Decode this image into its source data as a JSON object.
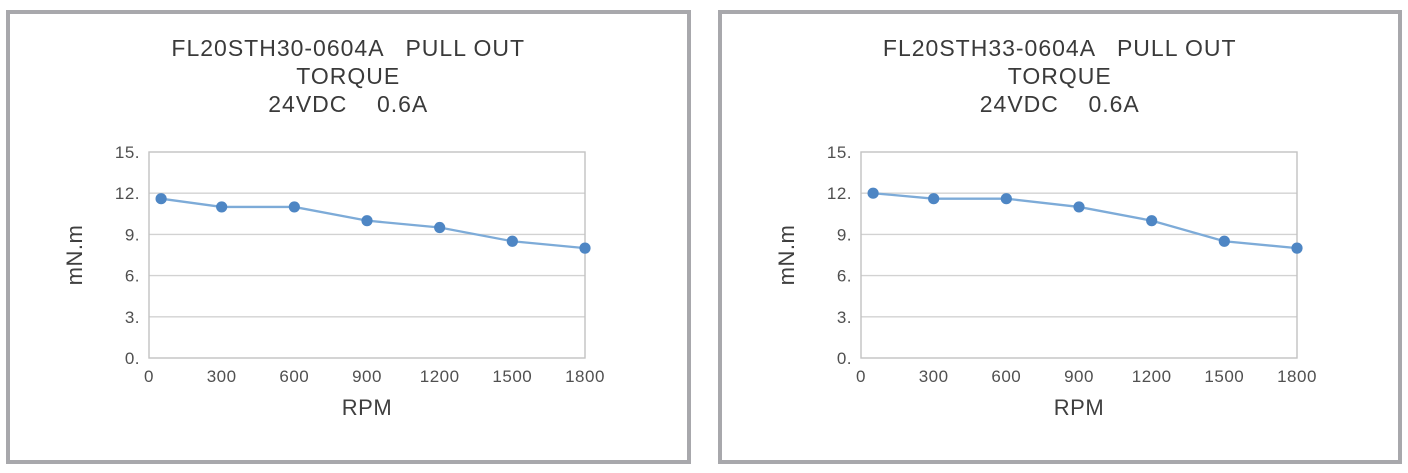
{
  "page": {
    "background": "#ffffff",
    "panel_border_color": "#a8a8ac"
  },
  "colors": {
    "marker": "#4e86c4",
    "line": "#7dabd8",
    "grid": "#d2d2d2",
    "plot_border": "#c2c2c2",
    "title_text": "#3a3a3a",
    "tick_text": "#505050"
  },
  "chart_data": [
    {
      "type": "line",
      "title_lines": [
        "FL20STH30-0604A   PULL OUT",
        "TORQUE",
        "24VDC    0.6A"
      ],
      "xlabel": "RPM",
      "ylabel": "mN.m",
      "x": [
        50,
        300,
        600,
        900,
        1200,
        1500,
        1800
      ],
      "values": [
        11.6,
        11.0,
        11.0,
        10.0,
        9.5,
        8.5,
        8.0
      ],
      "xlim": [
        0,
        1800
      ],
      "ylim": [
        0,
        15
      ],
      "xtick_values": [
        0,
        300,
        600,
        900,
        1200,
        1500,
        1800
      ],
      "xtick_labels": [
        "0",
        "300",
        "600",
        "900",
        "1200",
        "1500",
        "1800"
      ],
      "ytick_values": [
        0,
        3,
        6,
        9,
        12,
        15
      ],
      "ytick_labels": [
        "0.",
        "3.",
        "6.",
        "9.",
        "12.",
        "15."
      ],
      "grid": "horizontal",
      "legend": "none"
    },
    {
      "type": "line",
      "title_lines": [
        "FL20STH33-0604A   PULL OUT",
        "TORQUE",
        "24VDC    0.6A"
      ],
      "xlabel": "RPM",
      "ylabel": "mN.m",
      "x": [
        50,
        300,
        600,
        900,
        1200,
        1500,
        1800
      ],
      "values": [
        12.0,
        11.6,
        11.6,
        11.0,
        10.0,
        8.5,
        8.0
      ],
      "xlim": [
        0,
        1800
      ],
      "ylim": [
        0,
        15
      ],
      "xtick_values": [
        0,
        300,
        600,
        900,
        1200,
        1500,
        1800
      ],
      "xtick_labels": [
        "0",
        "300",
        "600",
        "900",
        "1200",
        "1500",
        "1800"
      ],
      "ytick_values": [
        0,
        3,
        6,
        9,
        12,
        15
      ],
      "ytick_labels": [
        "0.",
        "3.",
        "6.",
        "9.",
        "12.",
        "15."
      ],
      "grid": "horizontal",
      "legend": "none"
    }
  ]
}
